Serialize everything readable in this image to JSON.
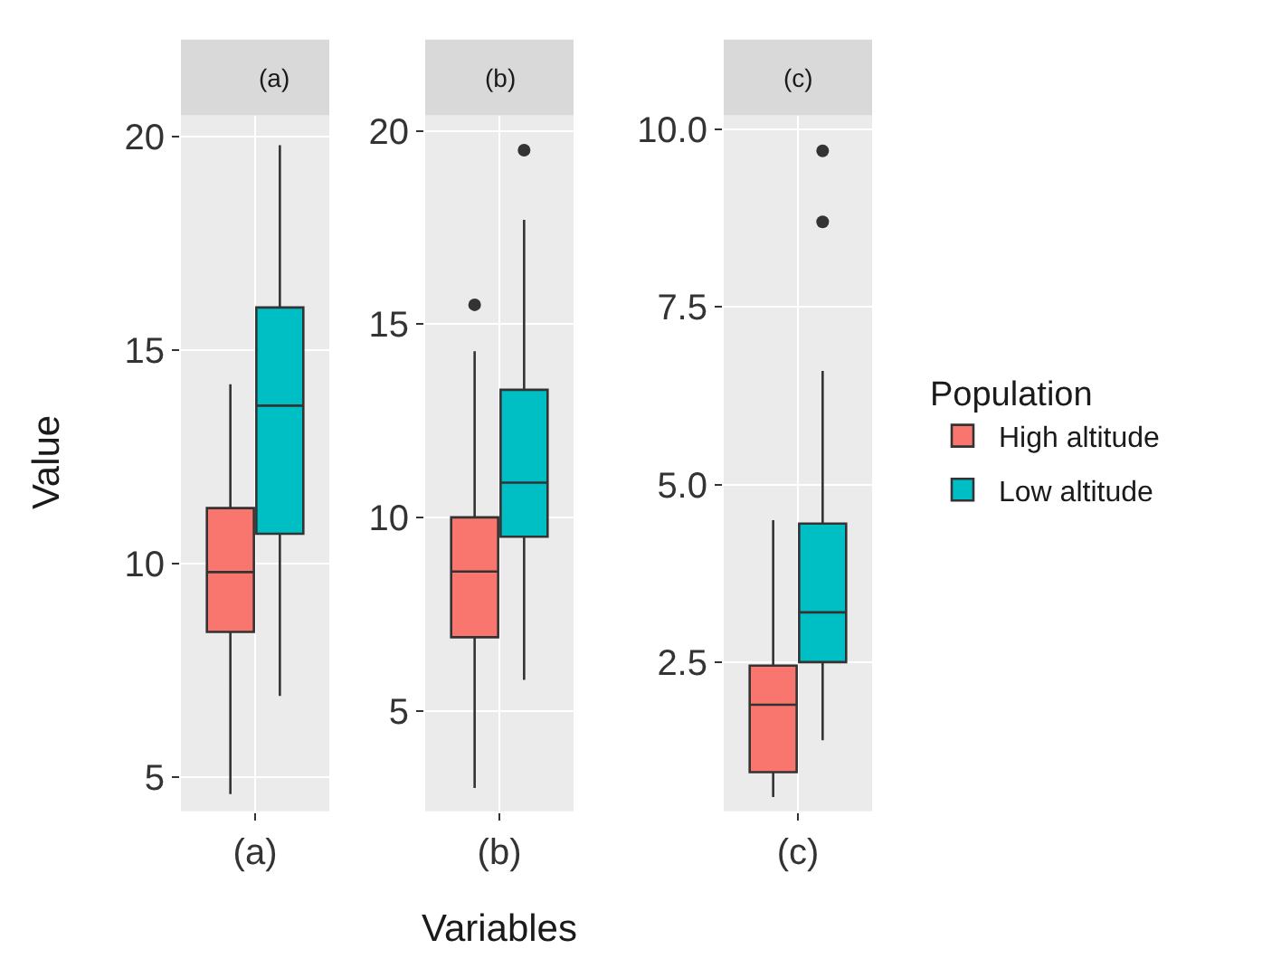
{
  "chart_data": [
    {
      "type": "box",
      "title": "(a)",
      "ylabel": "Value",
      "categories": [
        "(a)"
      ],
      "ylim": [
        4.2,
        20.5
      ],
      "yticks": [
        5,
        10,
        15,
        20
      ],
      "grid": true,
      "series": [
        {
          "color": "#f8766d",
          "boxes": [
            {
              "low": 4.6,
              "q1": 8.4,
              "median": 9.8,
              "q3": 11.3,
              "high": 14.2
            }
          ]
        },
        {
          "color": "#00bfc4",
          "boxes": [
            {
              "low": 6.9,
              "q1": 10.7,
              "median": 13.7,
              "q3": 16.0,
              "high": 19.8
            }
          ]
        }
      ]
    },
    {
      "type": "box",
      "title": "(b)",
      "xlabel": "Variables",
      "categories": [
        "(b)"
      ],
      "ylim": [
        2.4,
        20.4
      ],
      "yticks": [
        5,
        10,
        15,
        20
      ],
      "grid": true,
      "series": [
        {
          "color": "#f8766d",
          "boxes": [
            {
              "low": 3.0,
              "q1": 6.9,
              "median": 8.6,
              "q3": 10.0,
              "high": 14.3,
              "outliers": [
                15.5
              ]
            }
          ]
        },
        {
          "color": "#00bfc4",
          "boxes": [
            {
              "low": 5.8,
              "q1": 9.5,
              "median": 10.9,
              "q3": 13.3,
              "high": 17.7,
              "outliers": [
                19.5
              ]
            }
          ]
        }
      ]
    },
    {
      "type": "box",
      "title": "(c)",
      "categories": [
        "(c)"
      ],
      "ylim": [
        0.4,
        10.2
      ],
      "yticks": [
        {
          "value": 2.5,
          "label": "2.5"
        },
        {
          "value": 5,
          "label": "5.0"
        },
        {
          "value": 7.5,
          "label": "7.5"
        },
        {
          "value": 10,
          "label": "10.0"
        }
      ],
      "grid": true,
      "legend": "right",
      "legend_title": "Population",
      "series": [
        {
          "name": "High altitude",
          "color": "#f8766d",
          "boxes": [
            {
              "low": 0.6,
              "q1": 0.95,
              "median": 1.9,
              "q3": 2.45,
              "high": 4.5
            }
          ]
        },
        {
          "name": "Low altitude",
          "color": "#00bfc4",
          "boxes": [
            {
              "low": 1.4,
              "q1": 2.5,
              "median": 3.2,
              "q3": 4.45,
              "high": 6.6,
              "outliers": [
                8.7,
                9.7
              ]
            }
          ]
        }
      ]
    }
  ]
}
